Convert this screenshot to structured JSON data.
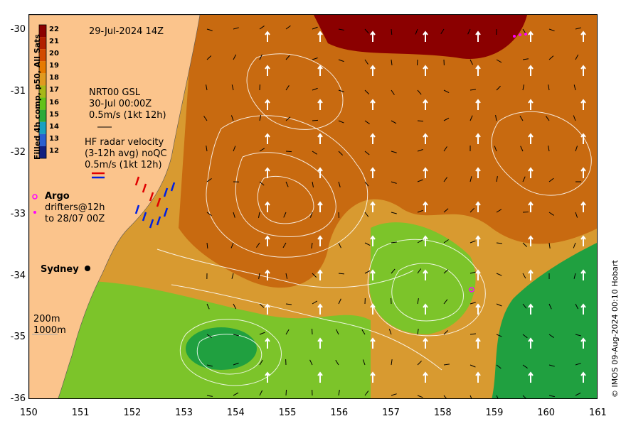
{
  "map": {
    "date_label": "29-Jul-2024 14Z",
    "colorbar_title": "Filled 4h comp, p50, All Sats",
    "colorbar_ticks": [
      "22",
      "21",
      "20",
      "19",
      "18",
      "17",
      "16",
      "15",
      "14",
      "13",
      "12"
    ],
    "colorbar_colors": [
      "#8b0000",
      "#b22000",
      "#d24a00",
      "#e67a00",
      "#e09a20",
      "#a8b818",
      "#62c21a",
      "#2aaa3a",
      "#1aa0c0",
      "#2a60d0",
      "#102080"
    ],
    "gsl_label": "NRT00 GSL",
    "gsl_time": "30-Jul 00:00Z",
    "gsl_scale": "0.5m/s (1kt 12h)",
    "hf_label_1": "HF radar velocity",
    "hf_label_2": "(3-12h avg) noQC",
    "hf_scale": "0.5m/s (1kt 12h)",
    "argo_label": "Argo",
    "drifters_label_1": "drifters@12h",
    "drifters_label_2": "to 28/07 00Z",
    "city_label": "Sydney",
    "isobath_200": "200m",
    "isobath_1000": "1000m",
    "credit": "© IMOS 09-Aug-2024 00:10 Hobart",
    "x_ticks": [
      "150",
      "151",
      "152",
      "153",
      "154",
      "155",
      "156",
      "157",
      "158",
      "159",
      "160",
      "161"
    ],
    "y_ticks": [
      "-30",
      "-31",
      "-32",
      "-33",
      "-34",
      "-35",
      "-36"
    ],
    "colors": {
      "land": "#fbc48c",
      "warm": "#c86a10",
      "hot": "#8b0000",
      "mid": "#d89a30",
      "cool": "#7cc42a",
      "coldest": "#20a040",
      "argo": "#ff00ff",
      "hf_red": "#e00000",
      "hf_blue": "#0020e0"
    }
  }
}
